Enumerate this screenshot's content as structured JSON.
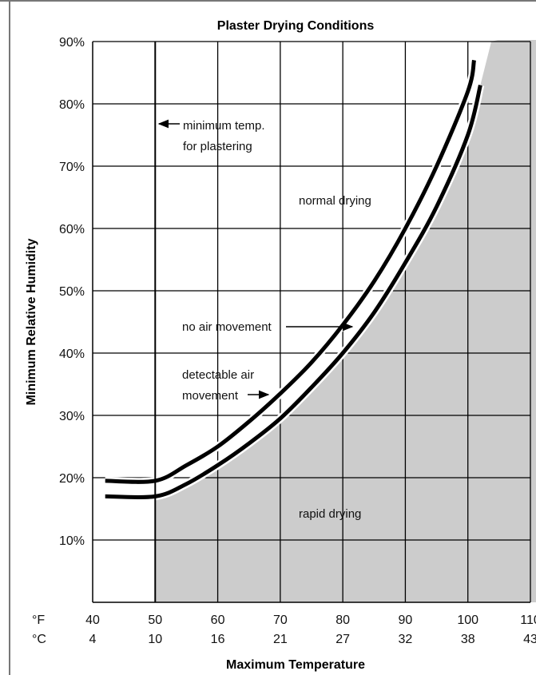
{
  "chart_data": {
    "type": "line",
    "title": "Plaster Drying Conditions",
    "xlabel": "Maximum Temperature",
    "ylabel": "Minimum Relative Humidity",
    "xlim": [
      40,
      110
    ],
    "ylim": [
      0,
      90
    ],
    "x_unit_label": "°F",
    "x_alt_unit_label": "°C",
    "x_ticks_f": [
      "40",
      "50",
      "60",
      "70",
      "80",
      "90",
      "100",
      "110"
    ],
    "x_ticks_c": [
      "4",
      "10",
      "16",
      "21",
      "27",
      "32",
      "38",
      "43"
    ],
    "y_ticks": [
      "10%",
      "20%",
      "30%",
      "40%",
      "50%",
      "60%",
      "70%",
      "80%",
      "90%"
    ],
    "grid": true,
    "colors": {
      "shaded_region": "#cccccc",
      "line": "#000000",
      "grid": "#000000"
    },
    "series": [
      {
        "name": "no air movement",
        "x": [
          42,
          50,
          55,
          60,
          65,
          70,
          75,
          80,
          85,
          90,
          95,
          100,
          101
        ],
        "y": [
          19.5,
          19.5,
          22,
          25,
          29,
          33.5,
          38.5,
          44.5,
          51.5,
          60,
          70,
          82,
          87
        ]
      },
      {
        "name": "detectable air movement",
        "x": [
          42,
          50,
          55,
          60,
          65,
          70,
          75,
          80,
          85,
          90,
          95,
          100,
          102
        ],
        "y": [
          17,
          17,
          19,
          22,
          25.5,
          29.5,
          34.5,
          40,
          46.5,
          54.5,
          63.5,
          75,
          83
        ]
      }
    ],
    "minimum_temp_line_x": 50,
    "regions": [
      {
        "label": "normal drying"
      },
      {
        "label": "rapid drying"
      }
    ],
    "annotations": [
      {
        "text": [
          "minimum temp.",
          "for plastering"
        ],
        "target": "minimum_temp_line"
      },
      {
        "text": [
          "normal drying"
        ]
      },
      {
        "text": [
          "no air movement"
        ],
        "target": "no air movement"
      },
      {
        "text": [
          "detectable air",
          "movement"
        ],
        "target": "detectable air movement"
      },
      {
        "text": [
          "rapid drying"
        ]
      }
    ]
  }
}
